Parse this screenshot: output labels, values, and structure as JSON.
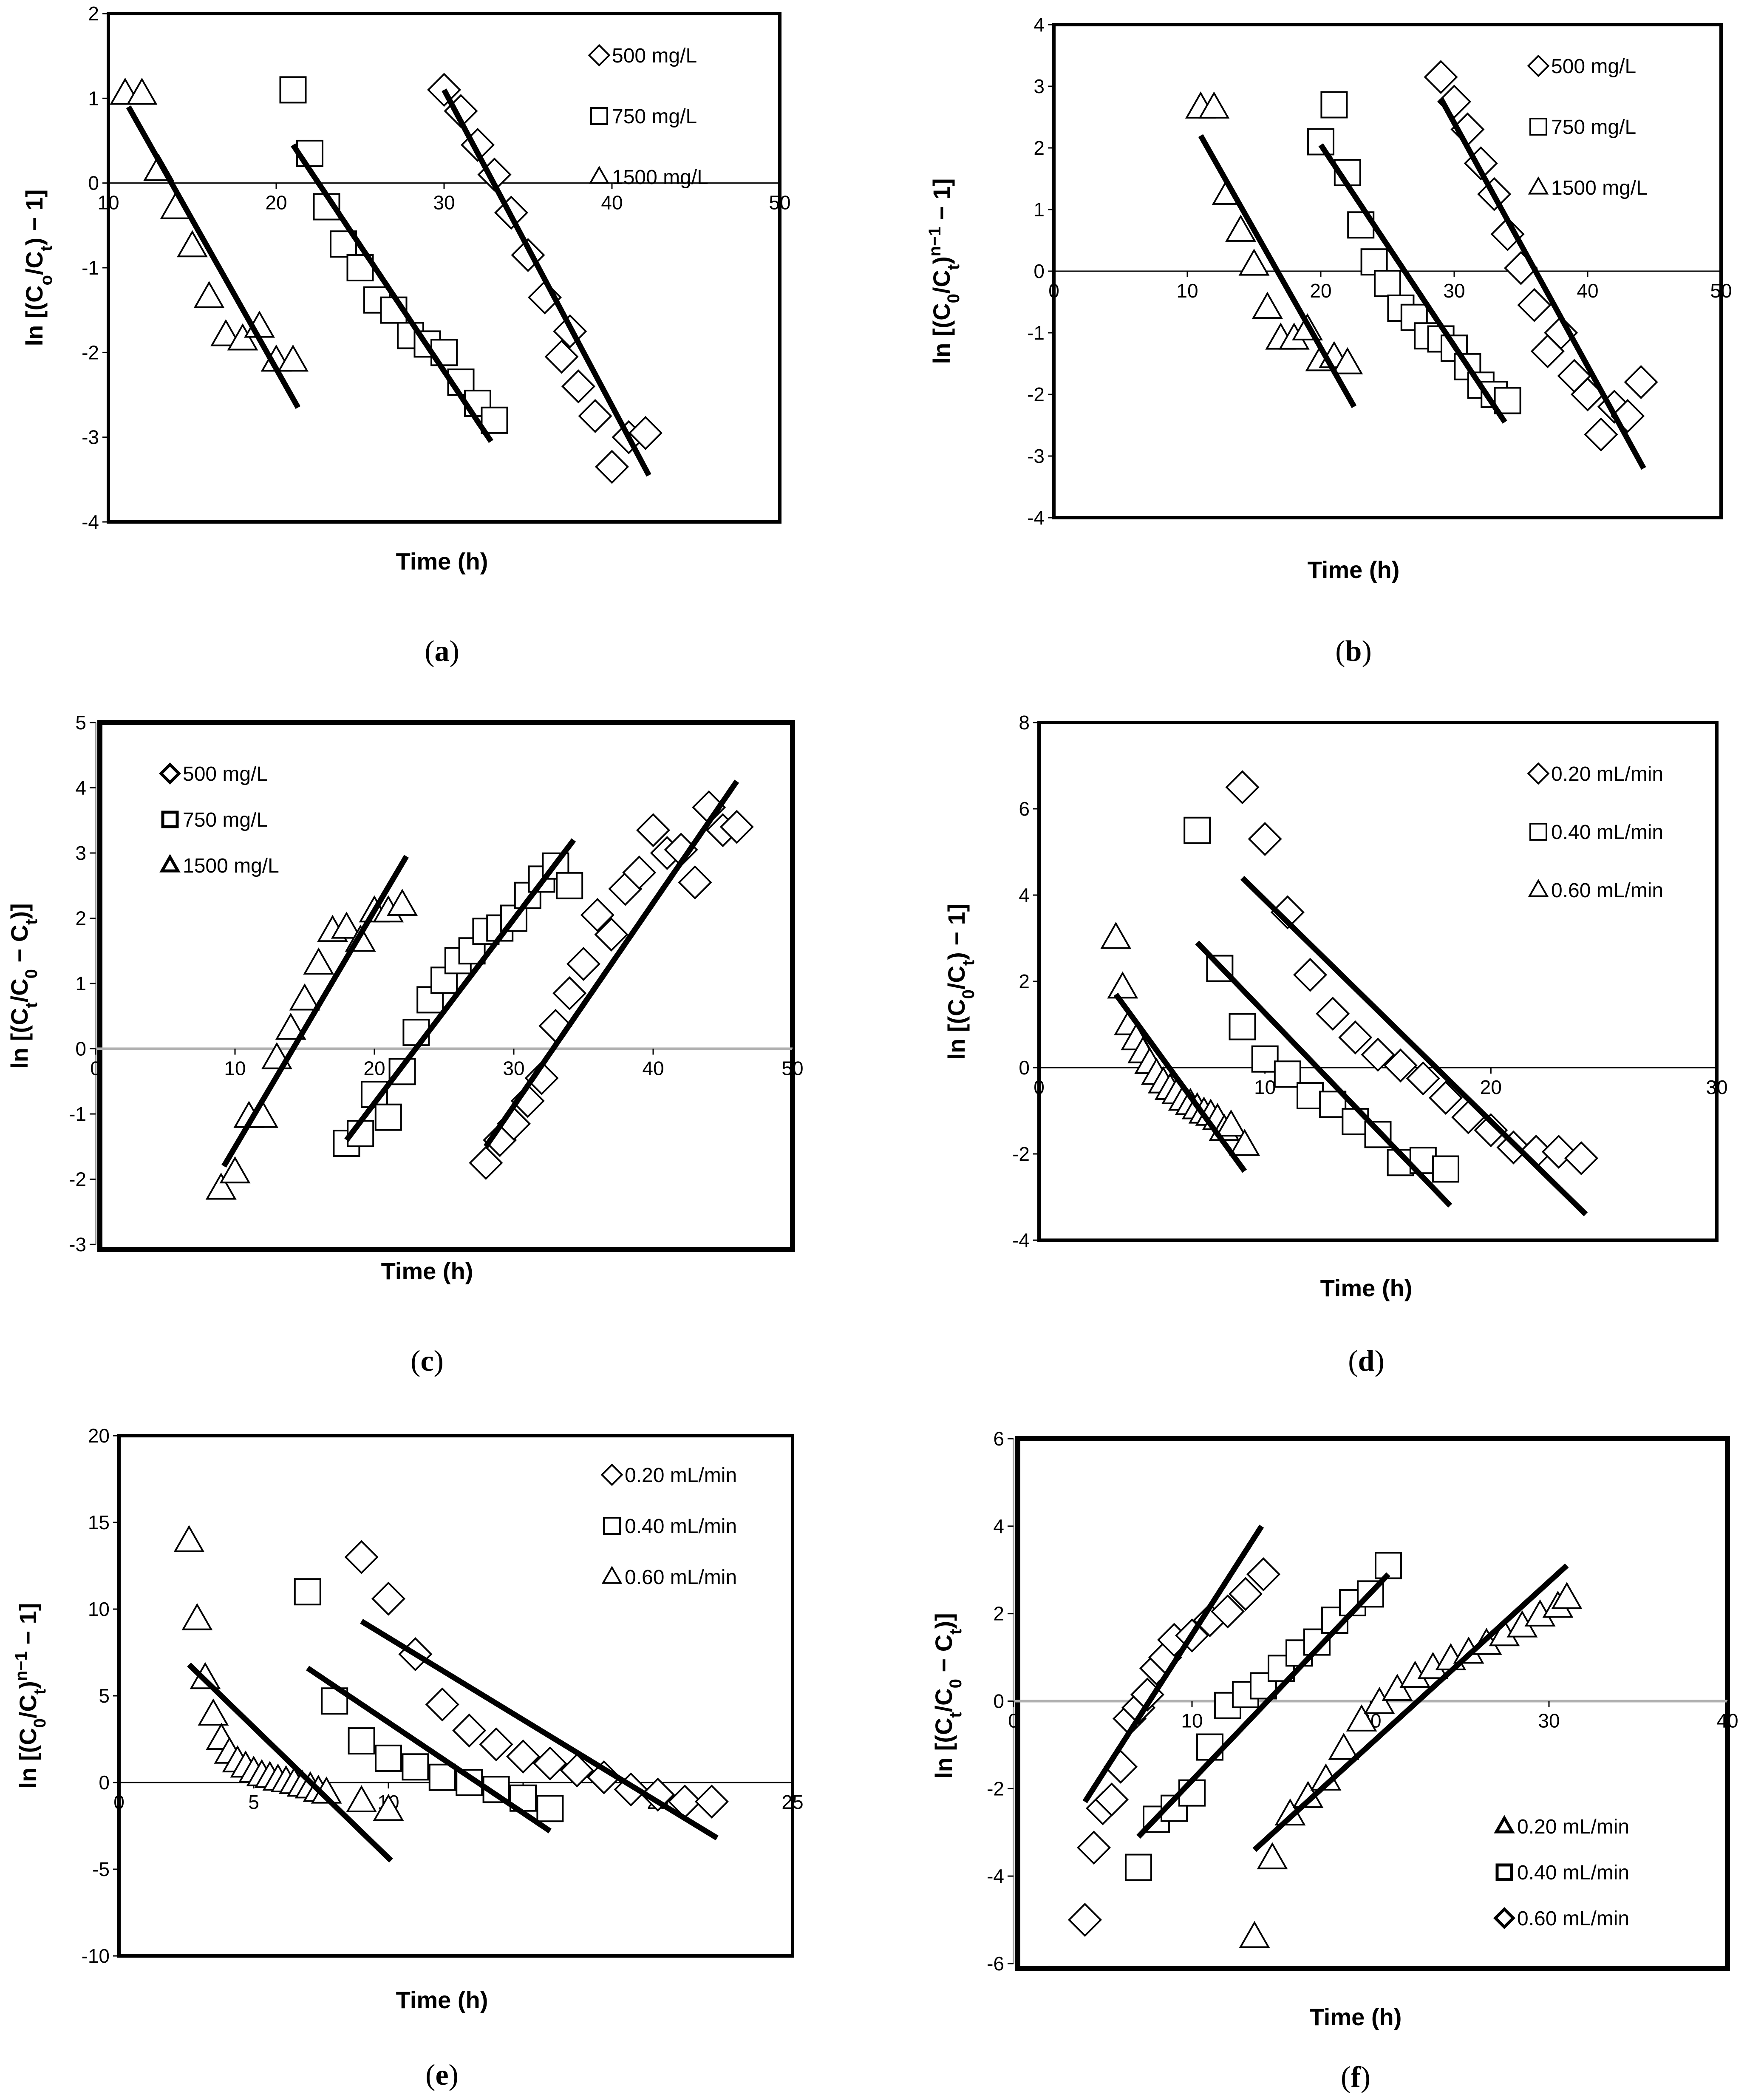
{
  "chart_data": [
    {
      "id": "a",
      "type": "scatter",
      "caption": "(a)",
      "xlabel": "Time (h)",
      "ylabel_parts": [
        "ln [(C",
        "o",
        "/C",
        "t",
        ") − 1]"
      ],
      "xlim": [
        10,
        50
      ],
      "ylim": [
        -4,
        2
      ],
      "xticks": [
        10,
        20,
        30,
        40,
        50
      ],
      "yticks": [
        -4,
        -3,
        -2,
        -1,
        0,
        1,
        2
      ],
      "x_axis_at": 0,
      "x_tick_labels_on_axis": true,
      "border": "normal",
      "legend_position": "top-right",
      "legend_bold_markers": false,
      "series": [
        {
          "name": "500 mg/L",
          "marker": "diamond",
          "x": [
            30,
            31,
            32,
            33,
            34,
            35,
            36,
            37,
            37.5,
            38,
            39,
            40,
            41,
            42
          ],
          "y": [
            1.1,
            0.85,
            0.45,
            0.1,
            -0.35,
            -0.85,
            -1.35,
            -2.05,
            -1.75,
            -2.4,
            -2.75,
            -3.35,
            -3.0,
            -2.95
          ],
          "fit": [
            [
              30,
              1.1
            ],
            [
              42.2,
              -3.45
            ]
          ]
        },
        {
          "name": "750 mg/L",
          "marker": "square",
          "x": [
            21,
            22,
            23,
            24,
            25,
            26,
            27,
            28,
            29,
            30,
            31,
            32,
            33
          ],
          "y": [
            1.1,
            0.35,
            -0.28,
            -0.72,
            -1.0,
            -1.38,
            -1.5,
            -1.8,
            -1.9,
            -2.0,
            -2.35,
            -2.6,
            -2.8
          ],
          "fit": [
            [
              21,
              0.45
            ],
            [
              32.8,
              -3.05
            ]
          ]
        },
        {
          "name": "1500 mg/L",
          "marker": "triangle",
          "x": [
            11,
            12,
            13,
            14,
            15,
            16,
            17,
            18,
            19,
            20,
            21
          ],
          "y": [
            1.05,
            1.05,
            0.15,
            -0.3,
            -0.75,
            -1.35,
            -1.8,
            -1.85,
            -1.7,
            -2.1,
            -2.1
          ],
          "fit": [
            [
              11.2,
              0.9
            ],
            [
              21.3,
              -2.65
            ]
          ]
        }
      ]
    },
    {
      "id": "b",
      "type": "scatter",
      "caption": "(b)",
      "xlabel": "Time (h)",
      "ylabel_parts": [
        "ln [(C",
        "0",
        "/C",
        "t",
        ")",
        "n−1",
        " − 1]"
      ],
      "xlim": [
        0,
        50
      ],
      "ylim": [
        -4,
        4
      ],
      "xticks": [
        0,
        10,
        20,
        30,
        40,
        50
      ],
      "yticks": [
        -4,
        -3,
        -2,
        -1,
        0,
        1,
        2,
        3,
        4
      ],
      "x_axis_at": 0,
      "x_tick_labels_on_axis": true,
      "border": "normal",
      "legend_position": "top-right",
      "legend_bold_markers": false,
      "series": [
        {
          "name": "500 mg/L",
          "marker": "diamond",
          "x": [
            29,
            30,
            31,
            32,
            33,
            34,
            35,
            36,
            37,
            38,
            39,
            40,
            41,
            42,
            43,
            44
          ],
          "y": [
            3.15,
            2.75,
            2.3,
            1.75,
            1.25,
            0.6,
            0.05,
            -0.55,
            -1.3,
            -1.0,
            -1.7,
            -2.0,
            -2.65,
            -2.2,
            -2.35,
            -1.8
          ],
          "fit": [
            [
              29,
              2.8
            ],
            [
              44.2,
              -3.2
            ]
          ]
        },
        {
          "name": "750 mg/L",
          "marker": "square",
          "x": [
            20,
            21,
            22,
            23,
            24,
            25,
            26,
            27,
            28,
            29,
            30,
            31,
            32,
            33,
            34
          ],
          "y": [
            2.1,
            2.7,
            1.6,
            0.75,
            0.15,
            -0.2,
            -0.6,
            -0.75,
            -1.05,
            -1.1,
            -1.25,
            -1.55,
            -1.85,
            -2.0,
            -2.1
          ],
          "fit": [
            [
              20,
              2.05
            ],
            [
              33.8,
              -2.45
            ]
          ]
        },
        {
          "name": "1500 mg/L",
          "marker": "triangle",
          "x": [
            11,
            12,
            13,
            14,
            15,
            16,
            17,
            18,
            19,
            20,
            21,
            22
          ],
          "y": [
            2.65,
            2.65,
            1.25,
            0.65,
            0.1,
            -0.6,
            -1.1,
            -1.1,
            -0.95,
            -1.45,
            -1.4,
            -1.5
          ],
          "fit": [
            [
              11,
              2.2
            ],
            [
              22.5,
              -2.2
            ]
          ]
        }
      ]
    },
    {
      "id": "c",
      "type": "scatter",
      "caption": "(c)",
      "xlabel": "Time (h)",
      "ylabel_parts": [
        "ln [(C",
        "t",
        "/C",
        "0",
        " − C",
        "t",
        ")]"
      ],
      "xlim": [
        0,
        50
      ],
      "ylim": [
        -3,
        5
      ],
      "xticks": [
        0,
        10,
        20,
        30,
        40,
        50
      ],
      "yticks": [
        -3,
        -2,
        -1,
        0,
        1,
        2,
        3,
        4,
        5
      ],
      "x_axis_at": 0,
      "x_tick_labels_on_axis": true,
      "border": "thick",
      "axis_line_color": "#b0b0b0",
      "legend_position": "top-left",
      "legend_bold_markers": true,
      "series": [
        {
          "name": "500 mg/L",
          "marker": "diamond",
          "x": [
            28,
            29,
            30,
            31,
            32,
            33,
            34,
            35,
            36,
            37,
            38,
            39,
            40,
            41,
            42,
            43,
            44,
            45,
            46
          ],
          "y": [
            -1.75,
            -1.4,
            -1.15,
            -0.8,
            -0.45,
            0.35,
            0.85,
            1.3,
            2.05,
            1.75,
            2.45,
            2.7,
            3.35,
            3.0,
            3.05,
            2.55,
            3.7,
            3.35,
            3.4
          ],
          "fit": [
            [
              28,
              -1.5
            ],
            [
              46,
              4.1
            ]
          ]
        },
        {
          "name": "750 mg/L",
          "marker": "square",
          "x": [
            18,
            19,
            20,
            21,
            22,
            23,
            24,
            25,
            26,
            27,
            28,
            29,
            30,
            31,
            32,
            33,
            34
          ],
          "y": [
            -1.45,
            -1.3,
            -0.7,
            -1.05,
            -0.35,
            0.25,
            0.75,
            1.05,
            1.35,
            1.5,
            1.8,
            1.85,
            2.0,
            2.35,
            2.6,
            2.8,
            2.5
          ],
          "fit": [
            [
              18,
              -1.4
            ],
            [
              34.3,
              3.2
            ]
          ]
        },
        {
          "name": "1500 mg/L",
          "marker": "triangle",
          "x": [
            9,
            10,
            11,
            12,
            13,
            14,
            15,
            16,
            17,
            18,
            19,
            20,
            21,
            22
          ],
          "y": [
            -2.15,
            -1.9,
            -1.05,
            -1.05,
            -0.15,
            0.3,
            0.75,
            1.3,
            1.8,
            1.85,
            1.65,
            2.1,
            2.1,
            2.2
          ],
          "fit": [
            [
              9.2,
              -1.8
            ],
            [
              22.3,
              2.95
            ]
          ]
        }
      ]
    },
    {
      "id": "d",
      "type": "scatter",
      "caption": "(d)",
      "xlabel": "Time (h)",
      "ylabel_parts": [
        "ln [(C",
        "0",
        "/C",
        "t",
        ") − 1]"
      ],
      "xlim": [
        0,
        30
      ],
      "ylim": [
        -4,
        8
      ],
      "xticks": [
        0,
        10,
        20,
        30
      ],
      "yticks": [
        -4,
        -2,
        0,
        2,
        4,
        6,
        8
      ],
      "x_axis_at": 0,
      "x_tick_labels_on_axis": true,
      "border": "normal",
      "legend_position": "top-right",
      "legend_bold_markers": false,
      "series": [
        {
          "name": "0.20 mL/min",
          "marker": "diamond",
          "x": [
            9,
            10,
            11,
            12,
            13,
            14,
            15,
            16,
            17,
            18,
            19,
            20,
            21,
            22,
            23,
            24
          ],
          "y": [
            6.5,
            5.3,
            3.6,
            2.15,
            1.25,
            0.7,
            0.3,
            0.05,
            -0.25,
            -0.7,
            -1.15,
            -1.45,
            -1.85,
            -1.95,
            -1.95,
            -2.1
          ],
          "fit": [
            [
              9,
              4.4
            ],
            [
              24.2,
              -3.4
            ]
          ]
        },
        {
          "name": "0.40 mL/min",
          "marker": "square",
          "x": [
            7,
            8,
            9,
            10,
            11,
            12,
            13,
            14,
            15,
            16,
            17,
            18
          ],
          "y": [
            5.5,
            2.3,
            0.95,
            0.2,
            -0.15,
            -0.65,
            -0.85,
            -1.25,
            -1.55,
            -2.2,
            -2.15,
            -2.35
          ],
          "fit": [
            [
              7,
              2.9
            ],
            [
              18.2,
              -3.2
            ]
          ]
        },
        {
          "name": "0.60 mL/min",
          "marker": "triangle",
          "x": [
            3.4,
            3.7,
            4.0,
            4.3,
            4.6,
            4.9,
            5.2,
            5.5,
            5.8,
            6.1,
            6.4,
            6.7,
            7.0,
            7.3,
            7.6,
            7.9,
            8.2,
            8.5,
            9.1
          ],
          "y": [
            3.0,
            1.85,
            1.0,
            0.65,
            0.35,
            0.1,
            -0.15,
            -0.35,
            -0.5,
            -0.6,
            -0.75,
            -0.85,
            -0.95,
            -1.05,
            -1.1,
            -1.2,
            -1.45,
            -1.35,
            -1.8
          ],
          "fit": [
            [
              3.4,
              1.7
            ],
            [
              9.1,
              -2.4
            ]
          ]
        }
      ]
    },
    {
      "id": "e",
      "type": "scatter",
      "caption": "(e)",
      "xlabel": "Time (h)",
      "ylabel_parts": [
        "ln [(C",
        "0",
        "/C",
        "t",
        ")",
        "n−1",
        " − 1]"
      ],
      "xlim": [
        0,
        25
      ],
      "ylim": [
        -10,
        20
      ],
      "xticks": [
        0,
        5,
        10,
        15,
        20,
        25
      ],
      "yticks": [
        -10,
        -5,
        0,
        5,
        10,
        15,
        20
      ],
      "x_axis_at": 0,
      "x_tick_labels_on_axis": true,
      "border": "normal",
      "legend_position": "top-right",
      "legend_bold_markers": false,
      "series": [
        {
          "name": "0.20 mL/min",
          "marker": "diamond",
          "x": [
            9,
            10,
            11,
            12,
            13,
            14,
            15,
            16,
            17,
            18,
            19,
            20,
            21,
            22
          ],
          "y": [
            13.0,
            10.6,
            7.4,
            4.5,
            3.0,
            2.2,
            1.5,
            1.1,
            0.7,
            0.3,
            -0.4,
            -0.7,
            -1.1,
            -1.1
          ],
          "fit": [
            [
              9,
              9.3
            ],
            [
              22.2,
              -3.2
            ]
          ]
        },
        {
          "name": "0.40 mL/min",
          "marker": "square",
          "x": [
            7,
            8,
            9,
            10,
            11,
            12,
            13,
            14,
            15,
            16
          ],
          "y": [
            11.0,
            4.7,
            2.4,
            1.4,
            0.9,
            0.3,
            0.0,
            -0.4,
            -0.9,
            -1.5
          ],
          "fit": [
            [
              7,
              6.6
            ],
            [
              16,
              -2.8
            ]
          ]
        },
        {
          "name": "0.60 mL/min",
          "marker": "triangle",
          "x": [
            2.6,
            2.9,
            3.2,
            3.5,
            3.8,
            4.1,
            4.4,
            4.7,
            5.0,
            5.3,
            5.6,
            5.9,
            6.2,
            6.5,
            6.8,
            7.1,
            7.4,
            7.7,
            9.0,
            10.0
          ],
          "y": [
            13.9,
            9.4,
            6.0,
            3.9,
            2.5,
            1.7,
            1.2,
            0.9,
            0.6,
            0.4,
            0.3,
            0.15,
            0.05,
            -0.05,
            -0.2,
            -0.3,
            -0.5,
            -0.6,
            -1.1,
            -1.6
          ],
          "fit": [
            [
              2.6,
              6.8
            ],
            [
              10.1,
              -4.5
            ]
          ]
        }
      ]
    },
    {
      "id": "f",
      "type": "scatter",
      "caption": "(f)",
      "xlabel": "Time (h)",
      "ylabel_parts": [
        "ln [(C",
        "t",
        "/C",
        "0",
        " − C",
        "t",
        ")]"
      ],
      "xlim": [
        0,
        40
      ],
      "ylim": [
        -6,
        6
      ],
      "xticks": [
        0,
        10,
        20,
        30,
        40
      ],
      "yticks": [
        -6,
        -4,
        -2,
        0,
        2,
        4,
        6
      ],
      "x_axis_at": 0,
      "x_tick_labels_on_axis": true,
      "border": "thick",
      "axis_line_color": "#b0b0b0",
      "legend_position": "bottom-right",
      "legend_bold_markers": true,
      "series": [
        {
          "name": "0.20 mL/min",
          "marker": "triangle",
          "x": [
            13.5,
            14.5,
            15.5,
            16.5,
            17.5,
            18.5,
            19.5,
            20.5,
            21.5,
            22.5,
            23.5,
            24.5,
            25.5,
            26.5,
            27.5,
            28.5,
            29.5,
            30.5,
            31
          ],
          "y": [
            -5.4,
            -3.6,
            -2.6,
            -2.2,
            -1.8,
            -1.1,
            -0.45,
            -0.05,
            0.25,
            0.55,
            0.75,
            0.95,
            1.1,
            1.3,
            1.5,
            1.7,
            1.95,
            2.15,
            2.35
          ],
          "fit": [
            [
              13.5,
              -3.4
            ],
            [
              31,
              3.1
            ]
          ]
        },
        {
          "name": "0.40 mL/min",
          "marker": "square",
          "x": [
            7,
            8,
            9,
            10,
            11,
            12,
            13,
            14,
            15,
            16,
            17,
            18,
            19,
            20,
            21
          ],
          "y": [
            -3.8,
            -2.7,
            -2.45,
            -2.1,
            -1.05,
            -0.1,
            0.15,
            0.35,
            0.75,
            1.1,
            1.35,
            1.85,
            2.25,
            2.45,
            3.1
          ],
          "fit": [
            [
              7,
              -3.1
            ],
            [
              21,
              2.9
            ]
          ]
        },
        {
          "name": "0.60 mL/min",
          "marker": "diamond",
          "x": [
            4,
            4.5,
            5,
            5.5,
            6,
            6.5,
            7,
            7.5,
            8,
            8.5,
            9,
            10,
            11,
            12,
            13,
            14
          ],
          "y": [
            -5.0,
            -3.35,
            -2.45,
            -2.25,
            -1.5,
            -0.4,
            -0.15,
            0.15,
            0.75,
            1.0,
            1.4,
            1.5,
            1.85,
            2.05,
            2.45,
            2.9
          ],
          "fit": [
            [
              4,
              -2.3
            ],
            [
              13.9,
              4.0
            ]
          ]
        }
      ]
    }
  ]
}
